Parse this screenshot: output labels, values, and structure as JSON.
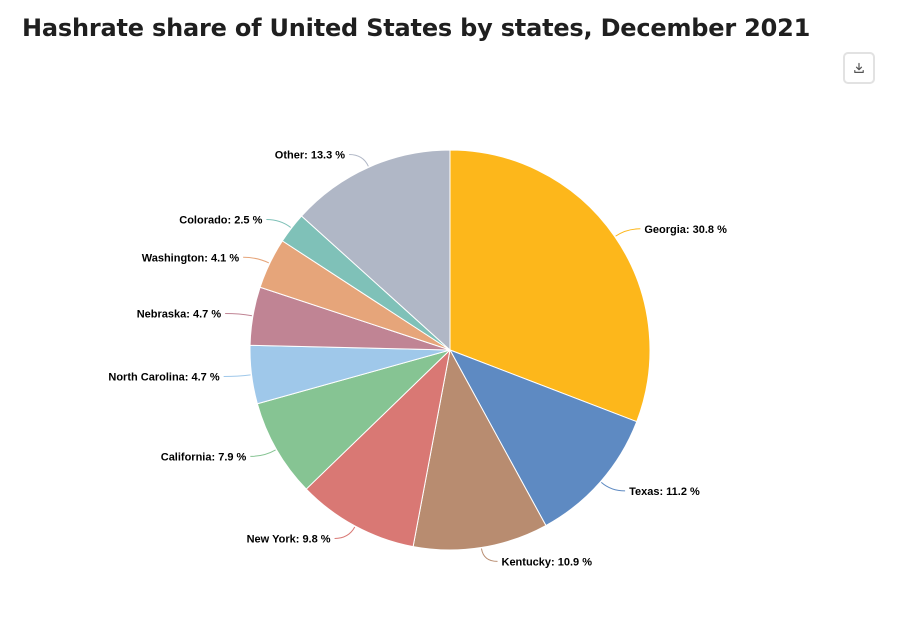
{
  "chart_data": {
    "type": "pie",
    "title": "Hashrate share of United States by states, December 2021",
    "value_suffix": " %",
    "slices": [
      {
        "label": "Georgia",
        "value": 30.8,
        "color": "#fdb71b"
      },
      {
        "label": "Texas",
        "value": 11.2,
        "color": "#5e8ac2"
      },
      {
        "label": "Kentucky",
        "value": 10.9,
        "color": "#b88c70"
      },
      {
        "label": "New York",
        "value": 9.8,
        "color": "#d97874"
      },
      {
        "label": "California",
        "value": 7.9,
        "color": "#86c493"
      },
      {
        "label": "North Carolina",
        "value": 4.7,
        "color": "#9fc8ea"
      },
      {
        "label": "Nebraska",
        "value": 4.7,
        "color": "#c08494"
      },
      {
        "label": "Washington",
        "value": 4.1,
        "color": "#e6a57a"
      },
      {
        "label": "Colorado",
        "value": 2.5,
        "color": "#7fc1b8"
      },
      {
        "label": "Other",
        "value": 13.3,
        "color": "#b0b7c6"
      }
    ]
  },
  "toolbar": {
    "download_icon": "download-icon"
  }
}
